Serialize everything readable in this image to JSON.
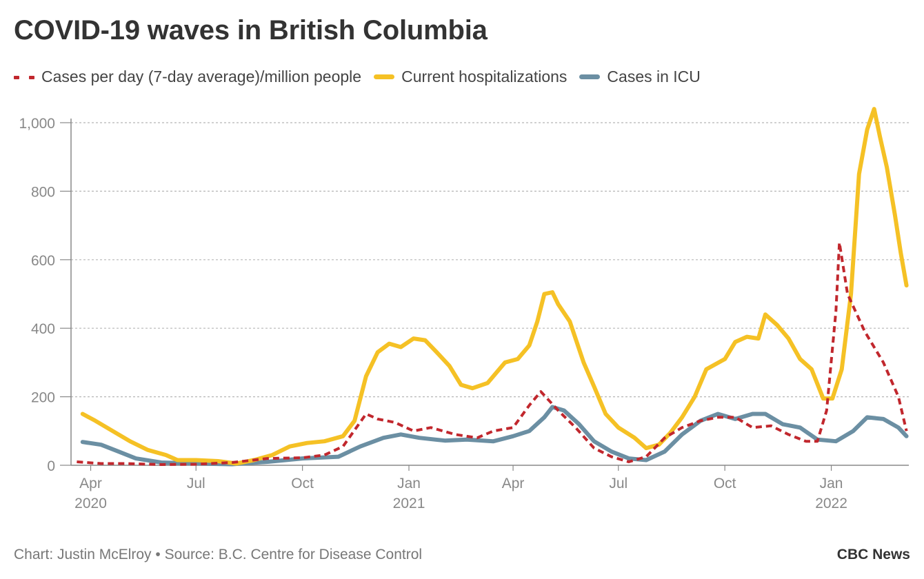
{
  "header": {
    "title": "COVID-19 waves in British Columbia"
  },
  "footer": {
    "source": "Chart: Justin McElroy • Source: B.C. Centre for Disease Control",
    "brand": "CBC News"
  },
  "chart_data": {
    "type": "line",
    "title": "COVID-19 waves in British Columbia",
    "xlabel": "",
    "ylabel": "",
    "xlim": [
      "2020-03-15",
      "2022-03-09"
    ],
    "ylim": [
      0,
      1000
    ],
    "y_ticks": [
      {
        "value": 0,
        "label": "0"
      },
      {
        "value": 200,
        "label": "200"
      },
      {
        "value": 400,
        "label": "400"
      },
      {
        "value": 600,
        "label": "600"
      },
      {
        "value": 800,
        "label": "800"
      },
      {
        "value": 1000,
        "label": "1,000"
      }
    ],
    "x_ticks": [
      {
        "date": "2020-04-01",
        "label": "Apr",
        "year": "2020"
      },
      {
        "date": "2020-07-01",
        "label": "Jul",
        "year": ""
      },
      {
        "date": "2020-10-01",
        "label": "Oct",
        "year": ""
      },
      {
        "date": "2021-01-01",
        "label": "Jan",
        "year": "2021"
      },
      {
        "date": "2021-04-01",
        "label": "Apr",
        "year": ""
      },
      {
        "date": "2021-07-01",
        "label": "Jul",
        "year": ""
      },
      {
        "date": "2021-10-01",
        "label": "Oct",
        "year": ""
      },
      {
        "date": "2022-01-01",
        "label": "Jan",
        "year": "2022"
      }
    ],
    "grid": true,
    "legend_position": "top-left",
    "series": [
      {
        "name": "Cases per day (7-day average)/million people",
        "color": "#c1272d",
        "style": "dashed",
        "points": [
          [
            "2020-03-20",
            10
          ],
          [
            "2020-04-10",
            5
          ],
          [
            "2020-05-01",
            5
          ],
          [
            "2020-06-01",
            2
          ],
          [
            "2020-07-01",
            3
          ],
          [
            "2020-08-01",
            8
          ],
          [
            "2020-09-01",
            20
          ],
          [
            "2020-10-01",
            22
          ],
          [
            "2020-10-20",
            30
          ],
          [
            "2020-11-05",
            55
          ],
          [
            "2020-11-25",
            150
          ],
          [
            "2020-12-05",
            135
          ],
          [
            "2020-12-20",
            125
          ],
          [
            "2021-01-05",
            100
          ],
          [
            "2021-01-20",
            110
          ],
          [
            "2021-02-10",
            90
          ],
          [
            "2021-03-01",
            80
          ],
          [
            "2021-03-15",
            100
          ],
          [
            "2021-04-01",
            110
          ],
          [
            "2021-04-15",
            175
          ],
          [
            "2021-04-25",
            215
          ],
          [
            "2021-05-10",
            160
          ],
          [
            "2021-05-25",
            110
          ],
          [
            "2021-06-10",
            50
          ],
          [
            "2021-06-25",
            25
          ],
          [
            "2021-07-10",
            10
          ],
          [
            "2021-07-25",
            25
          ],
          [
            "2021-08-10",
            80
          ],
          [
            "2021-08-25",
            110
          ],
          [
            "2021-09-10",
            130
          ],
          [
            "2021-09-25",
            140
          ],
          [
            "2021-10-10",
            140
          ],
          [
            "2021-10-25",
            110
          ],
          [
            "2021-11-10",
            115
          ],
          [
            "2021-11-25",
            90
          ],
          [
            "2021-12-10",
            70
          ],
          [
            "2021-12-20",
            70
          ],
          [
            "2021-12-28",
            160
          ],
          [
            "2022-01-05",
            450
          ],
          [
            "2022-01-08",
            650
          ],
          [
            "2022-01-15",
            500
          ],
          [
            "2022-01-30",
            390
          ],
          [
            "2022-02-15",
            300
          ],
          [
            "2022-02-28",
            200
          ],
          [
            "2022-03-07",
            100
          ]
        ]
      },
      {
        "name": "Current hospitalizations",
        "color": "#f5c125",
        "style": "solid",
        "points": [
          [
            "2020-03-25",
            150
          ],
          [
            "2020-04-05",
            130
          ],
          [
            "2020-04-20",
            100
          ],
          [
            "2020-05-05",
            70
          ],
          [
            "2020-05-20",
            45
          ],
          [
            "2020-06-05",
            30
          ],
          [
            "2020-06-15",
            15
          ],
          [
            "2020-07-01",
            15
          ],
          [
            "2020-07-20",
            12
          ],
          [
            "2020-08-05",
            5
          ],
          [
            "2020-08-20",
            15
          ],
          [
            "2020-09-05",
            30
          ],
          [
            "2020-09-20",
            55
          ],
          [
            "2020-10-05",
            65
          ],
          [
            "2020-10-20",
            70
          ],
          [
            "2020-11-05",
            85
          ],
          [
            "2020-11-15",
            130
          ],
          [
            "2020-11-25",
            260
          ],
          [
            "2020-12-05",
            330
          ],
          [
            "2020-12-15",
            355
          ],
          [
            "2020-12-25",
            345
          ],
          [
            "2021-01-05",
            370
          ],
          [
            "2021-01-15",
            365
          ],
          [
            "2021-01-25",
            330
          ],
          [
            "2021-02-05",
            290
          ],
          [
            "2021-02-15",
            235
          ],
          [
            "2021-02-25",
            225
          ],
          [
            "2021-03-10",
            240
          ],
          [
            "2021-03-25",
            300
          ],
          [
            "2021-04-05",
            310
          ],
          [
            "2021-04-15",
            350
          ],
          [
            "2021-04-22",
            420
          ],
          [
            "2021-04-28",
            500
          ],
          [
            "2021-05-05",
            505
          ],
          [
            "2021-05-10",
            470
          ],
          [
            "2021-05-20",
            420
          ],
          [
            "2021-06-01",
            300
          ],
          [
            "2021-06-10",
            230
          ],
          [
            "2021-06-20",
            150
          ],
          [
            "2021-07-01",
            110
          ],
          [
            "2021-07-15",
            80
          ],
          [
            "2021-07-25",
            50
          ],
          [
            "2021-08-05",
            60
          ],
          [
            "2021-08-15",
            95
          ],
          [
            "2021-08-25",
            140
          ],
          [
            "2021-09-05",
            200
          ],
          [
            "2021-09-15",
            280
          ],
          [
            "2021-10-01",
            310
          ],
          [
            "2021-10-10",
            360
          ],
          [
            "2021-10-20",
            375
          ],
          [
            "2021-10-30",
            370
          ],
          [
            "2021-11-05",
            440
          ],
          [
            "2021-11-15",
            410
          ],
          [
            "2021-11-25",
            370
          ],
          [
            "2021-12-05",
            310
          ],
          [
            "2021-12-15",
            280
          ],
          [
            "2021-12-25",
            195
          ],
          [
            "2022-01-02",
            195
          ],
          [
            "2022-01-10",
            280
          ],
          [
            "2022-01-18",
            500
          ],
          [
            "2022-01-25",
            850
          ],
          [
            "2022-02-01",
            980
          ],
          [
            "2022-02-07",
            1040
          ],
          [
            "2022-02-12",
            960
          ],
          [
            "2022-02-18",
            870
          ],
          [
            "2022-02-25",
            730
          ],
          [
            "2022-03-02",
            620
          ],
          [
            "2022-03-07",
            525
          ]
        ]
      },
      {
        "name": "Cases in ICU",
        "color": "#6b8fa3",
        "style": "solid",
        "points": [
          [
            "2020-03-25",
            68
          ],
          [
            "2020-04-10",
            60
          ],
          [
            "2020-04-25",
            40
          ],
          [
            "2020-05-10",
            20
          ],
          [
            "2020-06-01",
            8
          ],
          [
            "2020-07-01",
            5
          ],
          [
            "2020-08-01",
            3
          ],
          [
            "2020-09-01",
            10
          ],
          [
            "2020-10-01",
            20
          ],
          [
            "2020-11-01",
            25
          ],
          [
            "2020-11-20",
            55
          ],
          [
            "2020-12-10",
            80
          ],
          [
            "2020-12-25",
            90
          ],
          [
            "2021-01-10",
            80
          ],
          [
            "2021-02-01",
            72
          ],
          [
            "2021-02-20",
            75
          ],
          [
            "2021-03-15",
            70
          ],
          [
            "2021-04-01",
            85
          ],
          [
            "2021-04-15",
            100
          ],
          [
            "2021-04-28",
            140
          ],
          [
            "2021-05-05",
            170
          ],
          [
            "2021-05-15",
            160
          ],
          [
            "2021-05-28",
            120
          ],
          [
            "2021-06-10",
            70
          ],
          [
            "2021-06-25",
            40
          ],
          [
            "2021-07-10",
            20
          ],
          [
            "2021-07-25",
            15
          ],
          [
            "2021-08-10",
            40
          ],
          [
            "2021-08-25",
            90
          ],
          [
            "2021-09-10",
            130
          ],
          [
            "2021-09-25",
            150
          ],
          [
            "2021-10-10",
            135
          ],
          [
            "2021-10-25",
            150
          ],
          [
            "2021-11-05",
            150
          ],
          [
            "2021-11-20",
            120
          ],
          [
            "2021-12-05",
            110
          ],
          [
            "2021-12-20",
            75
          ],
          [
            "2022-01-05",
            70
          ],
          [
            "2022-01-20",
            100
          ],
          [
            "2022-02-01",
            140
          ],
          [
            "2022-02-15",
            135
          ],
          [
            "2022-02-28",
            110
          ],
          [
            "2022-03-07",
            85
          ]
        ]
      }
    ]
  }
}
